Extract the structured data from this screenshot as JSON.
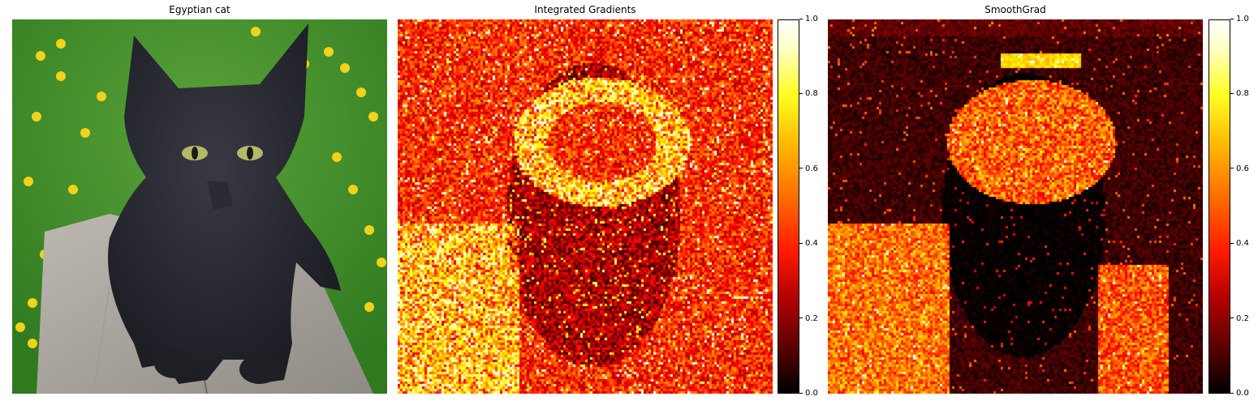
{
  "chart_data": [
    {
      "type": "image",
      "title": "Egyptian cat"
    },
    {
      "type": "heatmap",
      "title": "Integrated Gradients",
      "colormap": "hot",
      "colorbar": {
        "range": [
          0.0,
          1.0
        ],
        "ticks": [
          "0.0",
          "0.2",
          "0.4",
          "0.6",
          "0.8",
          "1.0"
        ]
      }
    },
    {
      "type": "heatmap",
      "title": "SmoothGrad",
      "colormap": "hot",
      "colorbar": {
        "range": [
          0.0,
          1.0
        ],
        "ticks": [
          "0.0",
          "0.2",
          "0.4",
          "0.6",
          "0.8",
          "1.0"
        ]
      }
    }
  ],
  "colors": {
    "grass": "#4a8f2a",
    "dandelion": "#f2d21b",
    "board": "#a7a29b",
    "cat": "#2c2c34",
    "eye": "#b5b86a",
    "hot_low": "#000000",
    "hot_mid": "#ff2a00",
    "hot_high": "#ffffff"
  }
}
